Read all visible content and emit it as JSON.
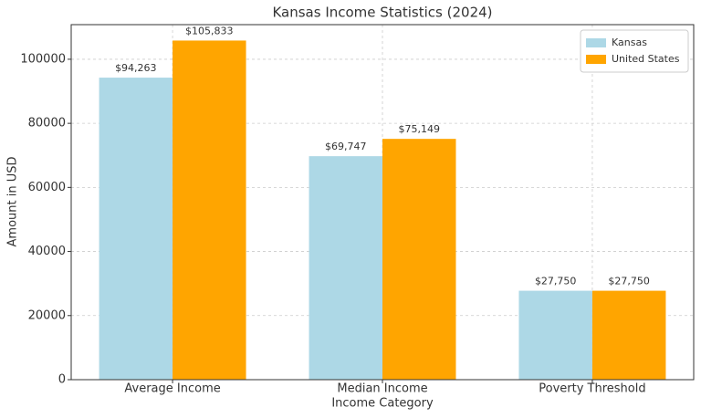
{
  "chart_data": {
    "type": "bar",
    "title": "Kansas Income Statistics (2024)",
    "x_label": "Income Category",
    "y_label": "Amount in USD",
    "categories": [
      "Average Income",
      "Median Income",
      "Poverty Threshold"
    ],
    "series": [
      {
        "name": "Kansas",
        "color": "#add8e6",
        "values": [
          94263,
          69747,
          27750
        ],
        "value_labels": [
          "$94,263",
          "$69,747",
          "$27,750"
        ]
      },
      {
        "name": "United States",
        "color": "#ffa500",
        "values": [
          105833,
          75149,
          27750
        ],
        "value_labels": [
          "$105,833",
          "$75,149",
          "$27,750"
        ]
      }
    ],
    "ylim": [
      0,
      110800
    ],
    "yticks": [
      0,
      20000,
      40000,
      60000,
      80000,
      100000
    ],
    "grid": true,
    "legend": "upper right"
  }
}
